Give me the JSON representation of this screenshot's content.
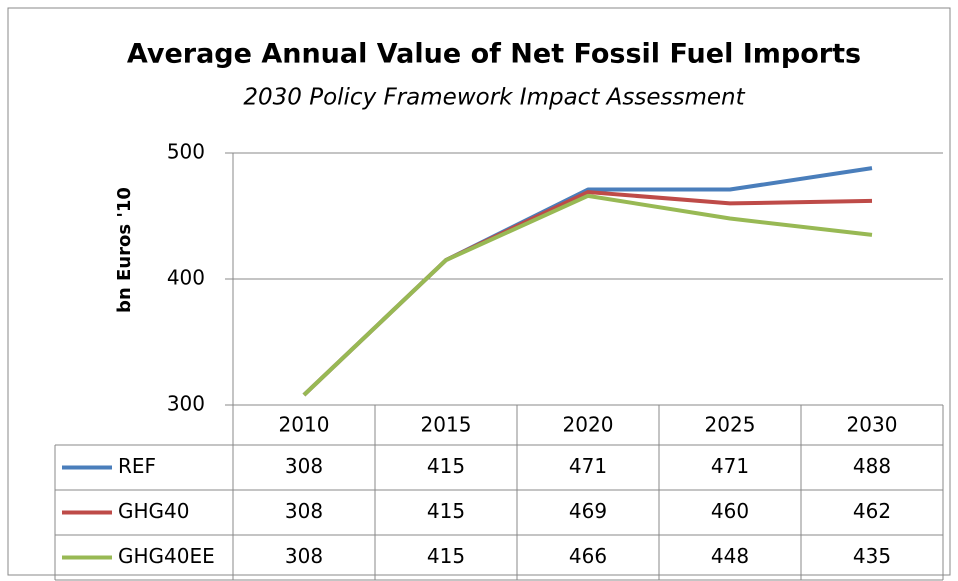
{
  "chart_data": {
    "type": "line",
    "title": "Average Annual Value of Net Fossil Fuel Imports",
    "subtitle": "2030 Policy Framework Impact Assessment",
    "y_label": "bn Euros '10",
    "categories": [
      "2010",
      "2015",
      "2020",
      "2025",
      "2030"
    ],
    "series": [
      {
        "name": "REF",
        "color": "#4a7ebb",
        "values": [
          308,
          415,
          471,
          471,
          488
        ]
      },
      {
        "name": "GHG40",
        "color": "#be4b48",
        "values": [
          308,
          415,
          469,
          460,
          462
        ]
      },
      {
        "name": "GHG40EE",
        "color": "#98b954",
        "values": [
          308,
          415,
          466,
          448,
          435
        ]
      }
    ],
    "ylim": [
      300,
      500
    ],
    "yticks": [
      300,
      400,
      500
    ],
    "grid": true
  }
}
